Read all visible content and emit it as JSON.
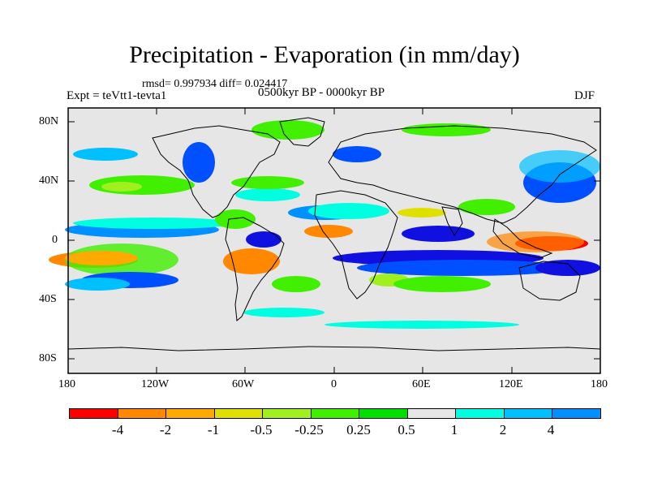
{
  "title": "Precipitation - Evaporation (in mm/day)",
  "stats_line": "rmsd= 0.997934  diff= 0.024417",
  "period_line": "0500kyr BP - 0000kyr BP",
  "experiment": "Expt = teVtt1-tevta1",
  "season": "DJF",
  "lat_ticks": [
    "80N",
    "40N",
    "0",
    "40S",
    "80S"
  ],
  "lon_ticks": [
    "180",
    "120W",
    "60W",
    "0",
    "60E",
    "120E",
    "180"
  ],
  "colorbar": {
    "colors": [
      "#ff0000",
      "#ff8800",
      "#ffaa00",
      "#e0e000",
      "#a0f020",
      "#40f000",
      "#00e000",
      "#e6e6e6",
      "#00ffe0",
      "#00c0ff",
      "#0090ff",
      "#0050ff",
      "#1010e0",
      "#2000c0",
      "#8020f0"
    ],
    "labels": [
      "-4",
      "-2",
      "-1",
      "-0.5",
      "-0.25",
      "0.25",
      "0.5",
      "1",
      "2",
      "4"
    ]
  },
  "ocean_color": "#e6e6e6"
}
